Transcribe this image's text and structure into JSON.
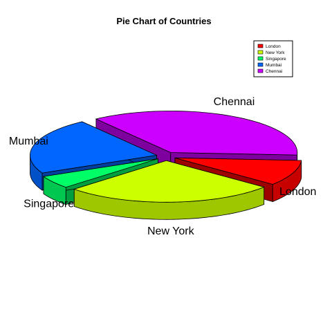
{
  "chart_data": {
    "type": "pie",
    "title": "Pie Chart of Countries",
    "categories": [
      "London",
      "New York",
      "Singapore",
      "Mumbai",
      "Chennai"
    ],
    "values": [
      10,
      27,
      5,
      22,
      36
    ],
    "colors": [
      "#ff0000",
      "#ccff00",
      "#00ff66",
      "#0066ff",
      "#cc00ff"
    ],
    "exploded": true,
    "three_d": true,
    "legend": {
      "placement": "top-right",
      "entries": [
        "London",
        "New York",
        "Singapore",
        "Mumbai",
        "Chennai"
      ]
    }
  }
}
